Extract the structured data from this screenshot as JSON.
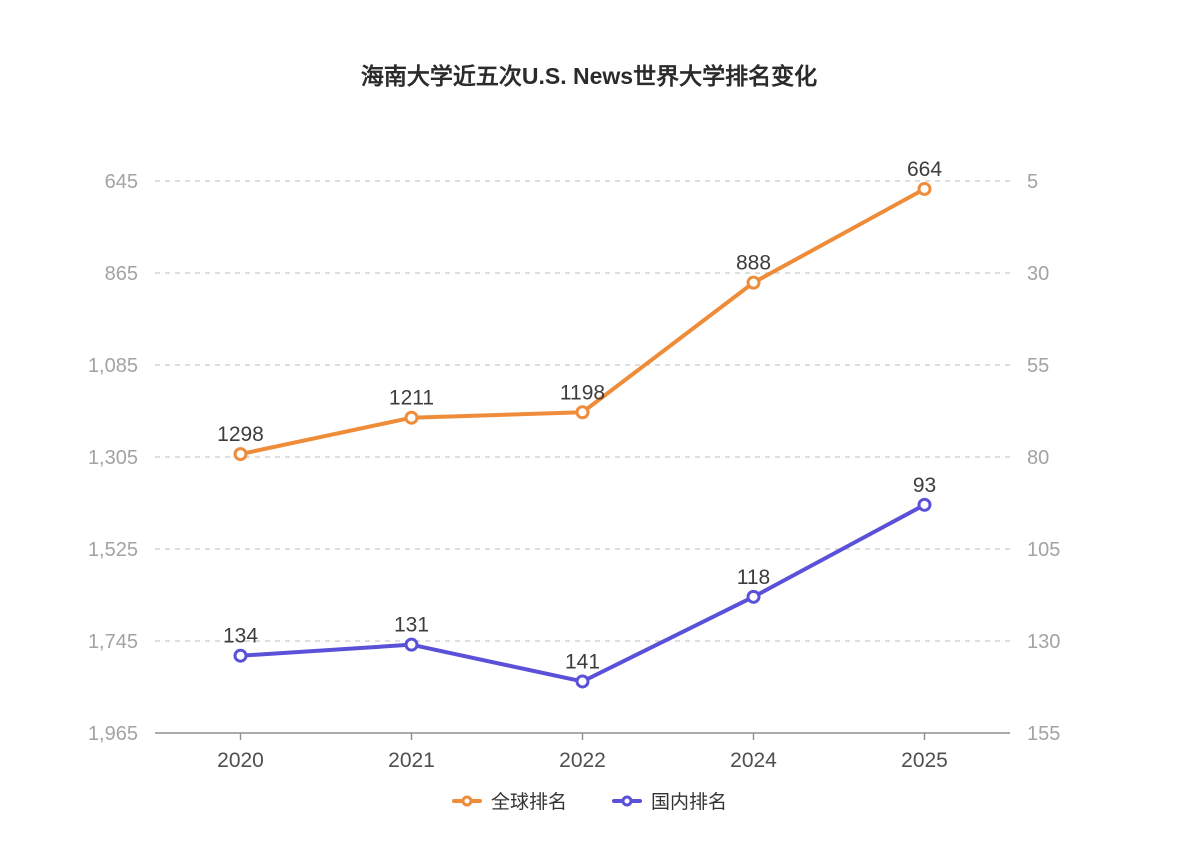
{
  "chart": {
    "title": "海南大学近五次U.S. News世界大学排名变化"
  },
  "chart_data": {
    "type": "line",
    "title": "海南大学近五次U.S. News世界大学排名变化",
    "categories": [
      "2020",
      "2021",
      "2022",
      "2024",
      "2025"
    ],
    "series": [
      {
        "id": "global",
        "name": "全球排名",
        "axis": "left",
        "color": "#EE8C3A",
        "values": [
          1298,
          1211,
          1198,
          888,
          664
        ],
        "point_labels": [
          "1298",
          "1211",
          "1198",
          "888",
          "664"
        ]
      },
      {
        "id": "domestic",
        "name": "国内排名",
        "axis": "right",
        "color": "#5B50D8",
        "values": [
          134,
          131,
          141,
          118,
          93
        ],
        "point_labels": [
          "134",
          "131",
          "141",
          "118",
          "93"
        ]
      }
    ],
    "left_axis": {
      "values": [
        645,
        865,
        1085,
        1305,
        1525,
        1745,
        1965
      ],
      "labels": [
        "645",
        "865",
        "1,085",
        "1,305",
        "1,525",
        "1,745",
        "1,965"
      ],
      "inverted": true
    },
    "right_axis": {
      "values": [
        5,
        30,
        55,
        80,
        105,
        130,
        155
      ],
      "labels": [
        "5",
        "30",
        "55",
        "80",
        "105",
        "130",
        "155"
      ],
      "inverted": true
    },
    "grid": true,
    "gridline_style": "dashed",
    "legend_position": "bottom",
    "marker": "open-circle",
    "colors": {
      "grid": "#cbcbcb",
      "axis": "#8f8f8f",
      "y_tick_text": "#a3a3a3",
      "x_tick_text": "#4f4f4f",
      "point_label_text": "#3d3d3d",
      "title_text": "#2b2b2b"
    }
  }
}
